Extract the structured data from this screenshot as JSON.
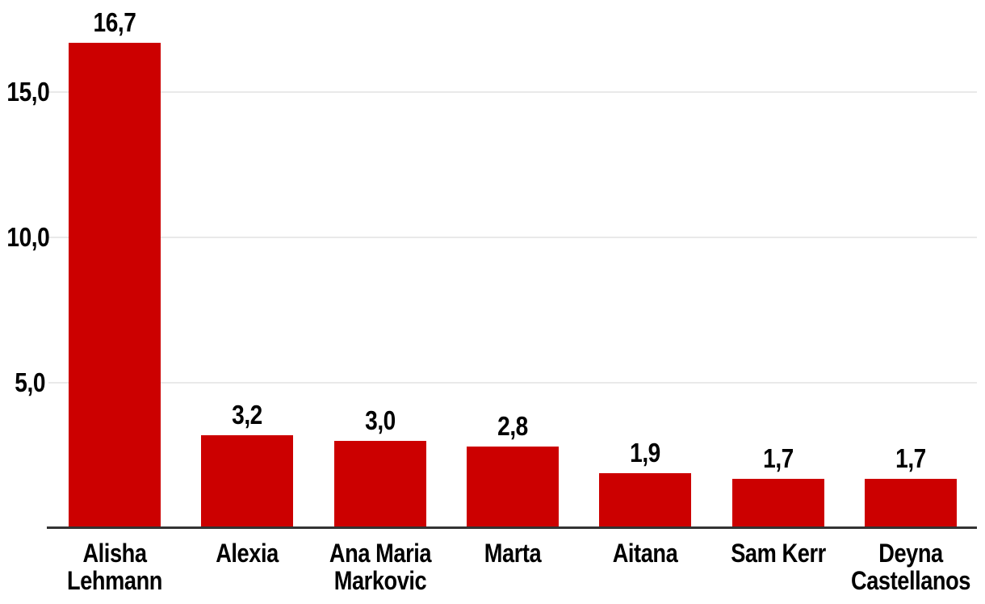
{
  "page": {
    "background_color": "#ffffff"
  },
  "chart_data": {
    "type": "bar",
    "title": "",
    "xlabel": "",
    "ylabel": "",
    "categories": [
      "Alisha Lehmann",
      "Alexia",
      "Ana Maria Markovic",
      "Marta",
      "Aitana",
      "Sam Kerr",
      "Deyna Castellanos"
    ],
    "category_lines": [
      [
        "Alisha",
        "Lehmann"
      ],
      [
        "Alexia"
      ],
      [
        "Ana Maria",
        "Markovic"
      ],
      [
        "Marta"
      ],
      [
        "Aitana"
      ],
      [
        "Sam Kerr"
      ],
      [
        "Deyna",
        "Castellanos"
      ]
    ],
    "values": [
      16.7,
      3.2,
      3.0,
      2.8,
      1.9,
      1.7,
      1.7
    ],
    "value_labels": [
      "16,7",
      "3,2",
      "3,0",
      "2,8",
      "1,9",
      "1,7",
      "1,7"
    ],
    "yticks": [
      5,
      10,
      15
    ],
    "ytick_labels": [
      "5,0",
      "10,0",
      "15,0"
    ],
    "ylim": [
      0,
      16.7
    ],
    "grid": "horizontal",
    "legend": "none",
    "decimal_separator": ",",
    "colors": {
      "bar": "#cc0000",
      "gridline": "#e9e9e9",
      "axis_line": "#333333",
      "text": "#000000",
      "background": "#ffffff"
    }
  }
}
